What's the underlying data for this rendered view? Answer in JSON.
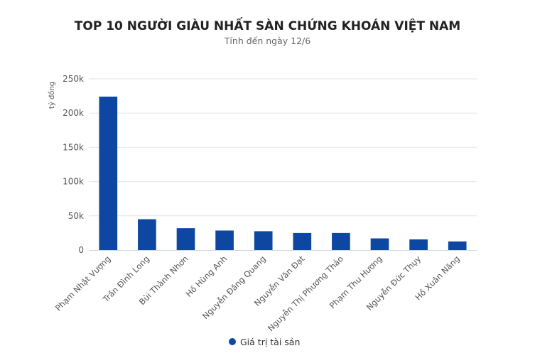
{
  "chart_data": {
    "type": "bar",
    "title": "TOP 10 NGƯỜI GIÀU NHẤT SÀN CHỨNG KHOÁN VIỆT NAM",
    "subtitle": "Tính đến ngày 12/6",
    "ylabel": "tỷ đồng",
    "xlabel": "",
    "ylim": [
      0,
      250000
    ],
    "yticks": [
      0,
      50000,
      100000,
      150000,
      200000,
      250000
    ],
    "ytick_labels": [
      "0",
      "50k",
      "100k",
      "150k",
      "200k",
      "250k"
    ],
    "grid": true,
    "legend": "bottom-center",
    "categories": [
      "Phạm Nhật Vượng",
      "Trần Đình Long",
      "Bùi Thành Nhơn",
      "Hồ Hùng Anh",
      "Nguyễn Đăng Quang",
      "Nguyễn Văn Đạt",
      "Nguyễn Thị Phương Thảo",
      "Phạm Thu Hương",
      "Nguyễn Đức Thụy",
      "Hồ Xuân Năng"
    ],
    "series": [
      {
        "name": "Giá trị tài sản",
        "color": "#0d47a1",
        "values": [
          224000,
          45000,
          32000,
          28500,
          27500,
          25000,
          25000,
          17000,
          15500,
          12500
        ]
      }
    ]
  }
}
